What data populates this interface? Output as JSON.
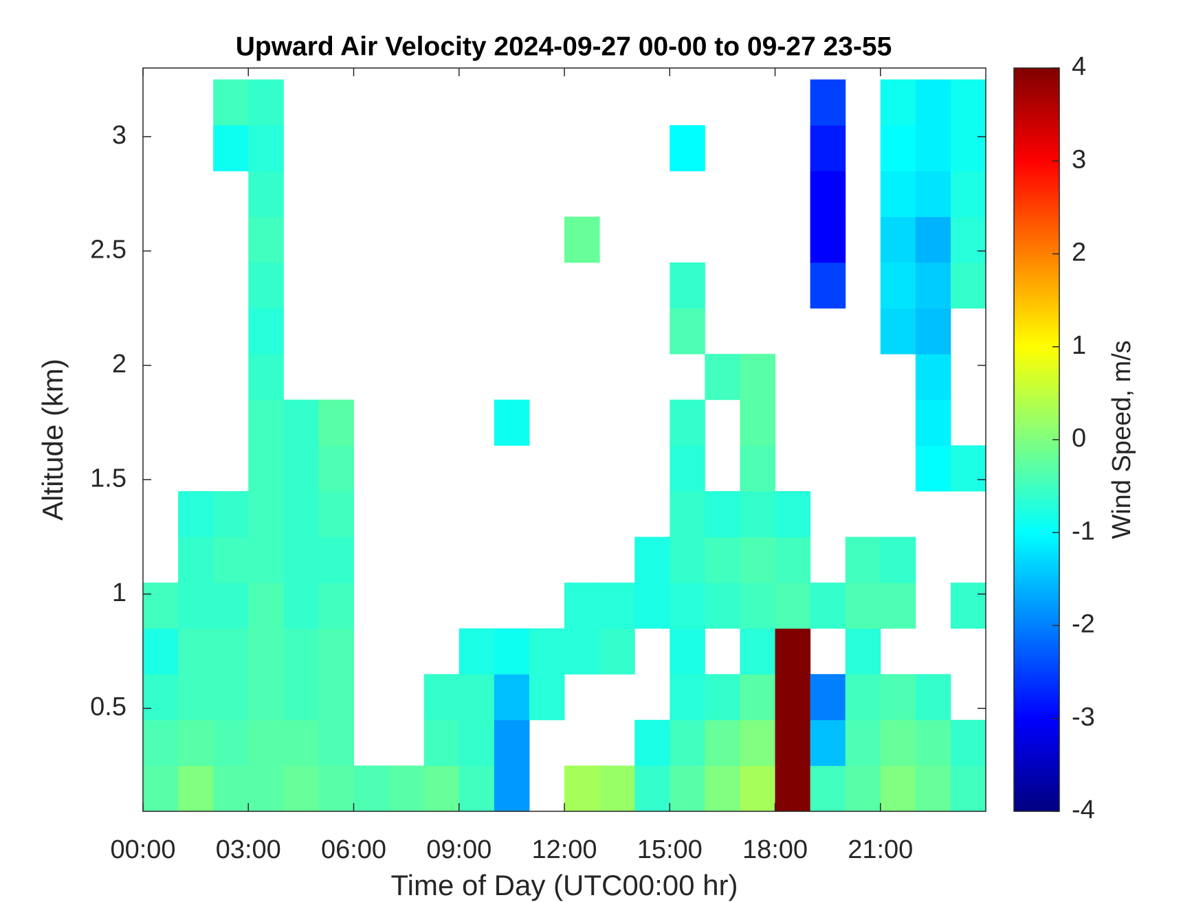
{
  "chart_data": {
    "type": "heatmap",
    "title": "Upward Air Velocity 2024-09-27 00-00 to 09-27 23-55",
    "x_label": "Time of Day (UTC00:00 hr)",
    "y_label": "Altitude (km)",
    "colorbar_label": "Wind Speed, m/s",
    "colormap": "jet",
    "xlim": [
      0,
      24
    ],
    "xticks": [
      {
        "value": 0,
        "label": "00:00"
      },
      {
        "value": 3,
        "label": "03:00"
      },
      {
        "value": 6,
        "label": "06:00"
      },
      {
        "value": 9,
        "label": "09:00"
      },
      {
        "value": 12,
        "label": "12:00"
      },
      {
        "value": 15,
        "label": "15:00"
      },
      {
        "value": 18,
        "label": "18:00"
      },
      {
        "value": 21,
        "label": "21:00"
      }
    ],
    "ylim": [
      0.05,
      3.3
    ],
    "yticks": [
      0.5,
      1,
      1.5,
      2,
      2.5,
      3
    ],
    "zlim": [
      -4,
      4
    ],
    "zticks": [
      -4,
      -3,
      -2,
      -1,
      0,
      1,
      2,
      3,
      4
    ],
    "xbins": [
      0,
      1,
      2,
      3,
      4,
      5,
      6,
      7,
      8,
      9,
      10,
      11,
      12,
      13,
      14,
      15,
      16,
      17,
      18,
      19,
      20,
      21,
      22,
      23,
      24
    ],
    "ybins": [
      0.05,
      0.25,
      0.45,
      0.65,
      0.85,
      1.05,
      1.25,
      1.45,
      1.65,
      1.85,
      2.05,
      2.25,
      2.45,
      2.65,
      2.85,
      3.05,
      3.25
    ],
    "z": [
      [
        -0.3,
        0,
        -0.3,
        -0.3,
        -0.2,
        -0.3,
        -0.4,
        -0.3,
        -0.2,
        -0.5,
        -1.8,
        null,
        0.3,
        0.2,
        -0.6,
        -0.3,
        0,
        0.3,
        4,
        -0.5,
        -0.3,
        0,
        -0.2,
        -0.5
      ],
      [
        -0.4,
        -0.3,
        -0.4,
        -0.3,
        -0.3,
        -0.4,
        null,
        null,
        -0.5,
        -0.6,
        -1.8,
        null,
        null,
        null,
        -0.8,
        -0.5,
        -0.2,
        0,
        4,
        -1.5,
        -0.4,
        -0.2,
        -0.3,
        -0.6
      ],
      [
        -0.6,
        -0.5,
        -0.5,
        -0.4,
        -0.5,
        -0.4,
        null,
        null,
        -0.6,
        -0.6,
        -1.5,
        -0.7,
        null,
        null,
        null,
        -0.7,
        -0.6,
        -0.3,
        4,
        -2,
        -0.5,
        -0.4,
        -0.6,
        null
      ],
      [
        -0.8,
        -0.5,
        -0.5,
        -0.4,
        -0.5,
        -0.4,
        null,
        null,
        null,
        -0.8,
        -0.9,
        -0.7,
        -0.7,
        -0.6,
        null,
        -0.8,
        null,
        -0.7,
        4,
        null,
        -0.7,
        null,
        null,
        null
      ],
      [
        -0.5,
        -0.6,
        -0.6,
        -0.4,
        -0.6,
        -0.5,
        null,
        null,
        null,
        null,
        null,
        null,
        -0.7,
        -0.7,
        -0.8,
        -0.7,
        -0.6,
        -0.5,
        -0.4,
        -0.6,
        -0.4,
        -0.4,
        null,
        -0.6
      ],
      [
        null,
        -0.6,
        -0.5,
        -0.5,
        -0.6,
        -0.6,
        null,
        null,
        null,
        null,
        null,
        null,
        null,
        null,
        -0.8,
        -0.6,
        -0.5,
        -0.4,
        -0.5,
        null,
        -0.5,
        -0.6,
        null,
        null
      ],
      [
        null,
        -0.7,
        -0.6,
        -0.5,
        -0.6,
        -0.5,
        null,
        null,
        null,
        null,
        null,
        null,
        null,
        null,
        null,
        -0.6,
        -0.7,
        -0.6,
        -0.7,
        null,
        null,
        null,
        null,
        null
      ],
      [
        null,
        null,
        null,
        -0.5,
        -0.6,
        -0.4,
        null,
        null,
        null,
        null,
        null,
        null,
        null,
        null,
        null,
        -0.7,
        null,
        -0.4,
        null,
        null,
        null,
        null,
        -1,
        -0.8
      ],
      [
        null,
        null,
        null,
        -0.5,
        -0.6,
        -0.3,
        null,
        null,
        null,
        null,
        -0.9,
        null,
        null,
        null,
        null,
        -0.6,
        null,
        -0.3,
        null,
        null,
        null,
        null,
        -1.1,
        null
      ],
      [
        null,
        null,
        null,
        -0.6,
        null,
        null,
        null,
        null,
        null,
        null,
        null,
        null,
        null,
        null,
        null,
        null,
        -0.5,
        -0.3,
        null,
        null,
        null,
        null,
        -1.2,
        null
      ],
      [
        null,
        null,
        null,
        -0.7,
        null,
        null,
        null,
        null,
        null,
        null,
        null,
        null,
        null,
        null,
        null,
        -0.4,
        null,
        null,
        null,
        null,
        null,
        -1.3,
        -1.5,
        null
      ],
      [
        null,
        null,
        null,
        -0.6,
        null,
        null,
        null,
        null,
        null,
        null,
        null,
        null,
        null,
        null,
        null,
        -0.6,
        null,
        null,
        null,
        -2.5,
        null,
        -1.2,
        -1.4,
        -0.6
      ],
      [
        null,
        null,
        null,
        -0.5,
        null,
        null,
        null,
        null,
        null,
        null,
        null,
        null,
        -0.2,
        null,
        null,
        null,
        null,
        null,
        null,
        -3,
        null,
        -1.3,
        -1.6,
        -0.7
      ],
      [
        null,
        null,
        null,
        -0.6,
        null,
        null,
        null,
        null,
        null,
        null,
        null,
        null,
        null,
        null,
        null,
        null,
        null,
        null,
        null,
        -3,
        null,
        -1.1,
        -1.2,
        -0.8
      ],
      [
        null,
        null,
        -0.9,
        -0.7,
        null,
        null,
        null,
        null,
        null,
        null,
        null,
        null,
        null,
        null,
        null,
        -1,
        null,
        null,
        null,
        -2.8,
        null,
        -1,
        -1.1,
        -0.9
      ],
      [
        null,
        null,
        -0.5,
        -0.6,
        null,
        null,
        null,
        null,
        null,
        null,
        null,
        null,
        null,
        null,
        null,
        null,
        null,
        null,
        null,
        -2.5,
        null,
        -0.9,
        -1.1,
        -0.9
      ]
    ]
  }
}
